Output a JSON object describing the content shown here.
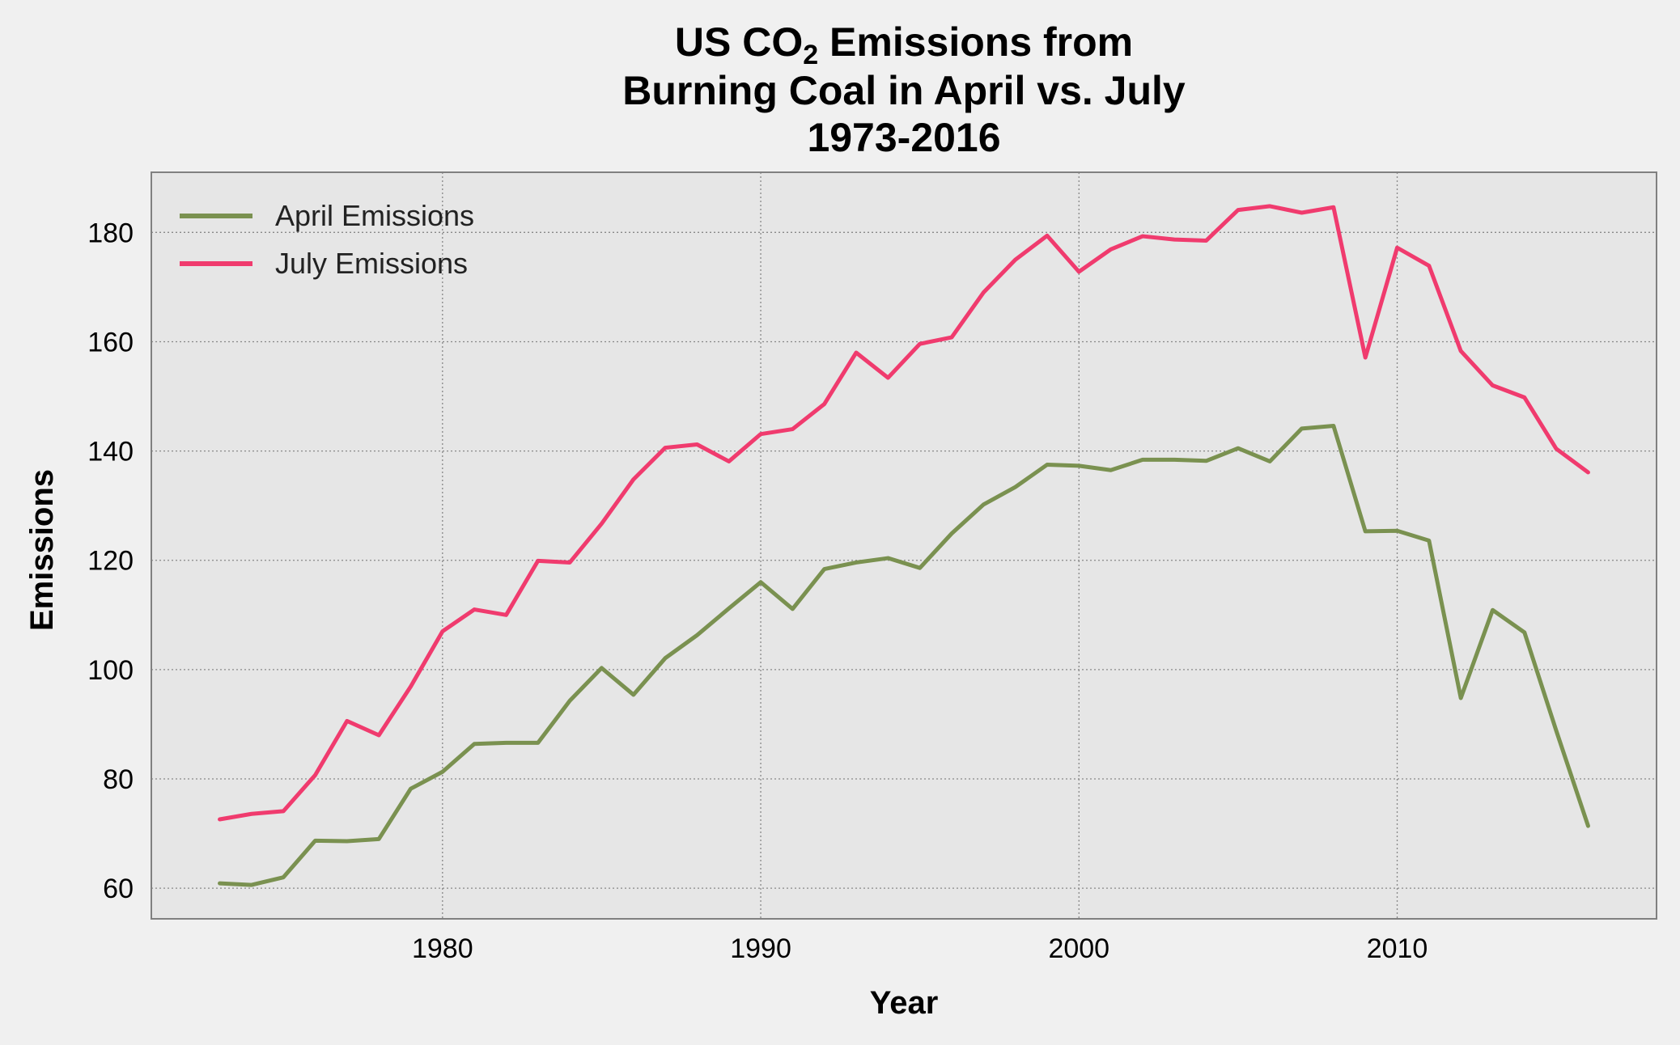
{
  "chart_data": {
    "type": "line",
    "title_lines": [
      "US CO",
      "Burning Coal in April vs. July",
      "1973-2016"
    ],
    "title_line1_sub": "2",
    "title_line1_tail": " Emissions from",
    "xlabel": "Year",
    "ylabel": "Emissions",
    "xlim": [
      1970.85,
      2018.15
    ],
    "ylim": [
      54.4,
      191.0
    ],
    "x_ticks": [
      1980,
      1990,
      2000,
      2010
    ],
    "y_ticks": [
      60,
      80,
      100,
      120,
      140,
      160,
      180
    ],
    "grid": true,
    "legend_position": "upper-left",
    "x": [
      1973,
      1974,
      1975,
      1976,
      1977,
      1978,
      1979,
      1980,
      1981,
      1982,
      1983,
      1984,
      1985,
      1986,
      1987,
      1988,
      1989,
      1990,
      1991,
      1992,
      1993,
      1994,
      1995,
      1996,
      1997,
      1998,
      1999,
      2000,
      2001,
      2002,
      2003,
      2004,
      2005,
      2006,
      2007,
      2008,
      2009,
      2010,
      2011,
      2012,
      2013,
      2014,
      2015,
      2016
    ],
    "series": [
      {
        "name": "April Emissions",
        "color": "#7a9150",
        "values": [
          60.9,
          60.6,
          62.0,
          68.7,
          68.6,
          69.0,
          78.2,
          81.3,
          86.4,
          86.6,
          86.6,
          94.3,
          100.3,
          95.4,
          102.1,
          106.3,
          111.2,
          116.0,
          111.1,
          118.4,
          119.6,
          120.4,
          118.6,
          124.9,
          130.2,
          133.4,
          137.5,
          137.3,
          136.5,
          138.4,
          138.4,
          138.2,
          140.5,
          138.1,
          144.1,
          144.6,
          125.3,
          125.4,
          123.6,
          94.8,
          110.9,
          106.8,
          88.8,
          71.4
        ]
      },
      {
        "name": "July Emissions",
        "color": "#f03b6e",
        "values": [
          72.6,
          73.6,
          74.1,
          80.7,
          90.6,
          88.0,
          96.9,
          107.0,
          111.0,
          110.0,
          119.9,
          119.6,
          126.7,
          134.8,
          140.6,
          141.2,
          138.1,
          143.1,
          144.0,
          148.6,
          158.0,
          153.4,
          159.6,
          160.8,
          169.0,
          175.0,
          179.4,
          172.8,
          176.9,
          179.3,
          178.7,
          178.5,
          184.1,
          184.8,
          183.6,
          184.6,
          157.1,
          177.2,
          173.9,
          158.3,
          152.0,
          149.8,
          140.4,
          136.1
        ]
      }
    ]
  }
}
